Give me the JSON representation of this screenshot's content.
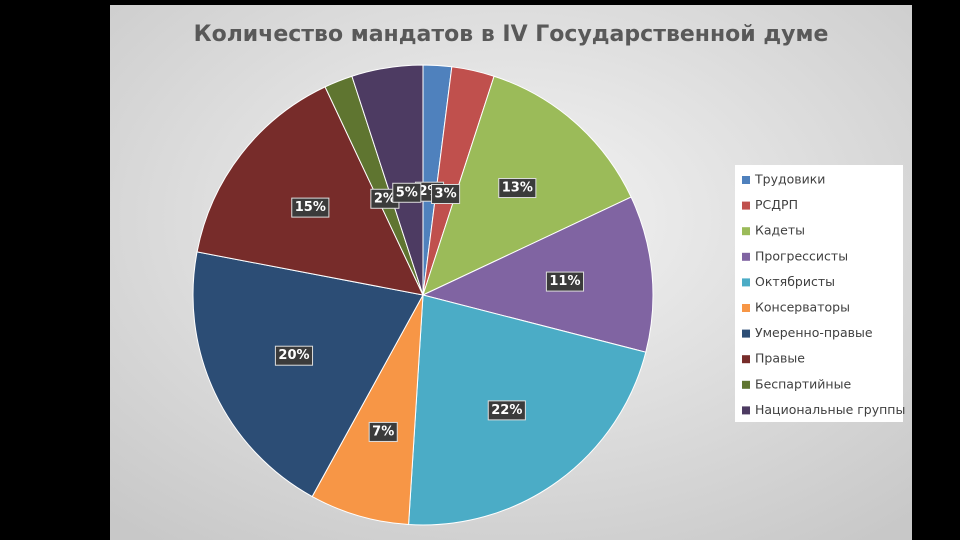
{
  "chart_data": {
    "type": "pie",
    "title": "Количество мандатов в IV Государственной думе",
    "categories": [
      "Трудовики",
      "РСДРП",
      "Кадеты",
      "Прогрессисты",
      "Октябристы",
      "Консерваторы",
      "Умеренно-правые",
      "Правые",
      "Беспартийные",
      "Национальные группы"
    ],
    "values": [
      2,
      3,
      13,
      11,
      22,
      7,
      20,
      15,
      2,
      5
    ],
    "value_labels": [
      "2%",
      "3%",
      "13%",
      "11%",
      "22%",
      "7%",
      "20%",
      "15%",
      "2%",
      "5%"
    ],
    "colors": [
      "#4f81bd",
      "#c0504d",
      "#9bbb59",
      "#8064a2",
      "#4bacc6",
      "#f79646",
      "#2c4d75",
      "#772c2a",
      "#5f7530",
      "#4d3b62"
    ],
    "legend": "right"
  }
}
